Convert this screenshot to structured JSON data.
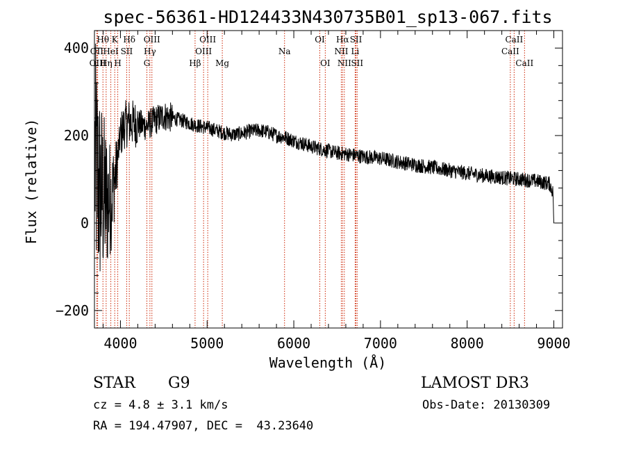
{
  "chart_data": {
    "type": "line",
    "title": "spec-56361-HD124433N430735B01_sp13-067.fits",
    "xlabel": "Wavelength (Å)",
    "ylabel": "Flux (relative)",
    "xlim": [
      3700,
      9100
    ],
    "ylim": [
      -240,
      440
    ],
    "xticks": [
      4000,
      5000,
      6000,
      7000,
      8000,
      9000
    ],
    "yticks": [
      -200,
      0,
      200,
      400
    ],
    "grid": false,
    "series": [
      {
        "name": "flux",
        "x": [
          3700,
          3750,
          3800,
          3850,
          3900,
          3950,
          4000,
          4050,
          4100,
          4150,
          4200,
          4300,
          4400,
          4500,
          4600,
          4700,
          4800,
          4900,
          5000,
          5100,
          5200,
          5300,
          5400,
          5500,
          5600,
          5700,
          5800,
          5900,
          6000,
          6100,
          6200,
          6300,
          6400,
          6500,
          6600,
          6700,
          6800,
          6900,
          7000,
          7200,
          7400,
          7600,
          7800,
          8000,
          8200,
          8400,
          8600,
          8800,
          8950,
          8990,
          9000
        ],
        "y": [
          150,
          80,
          60,
          50,
          60,
          120,
          200,
          225,
          230,
          228,
          226,
          222,
          235,
          245,
          240,
          235,
          228,
          222,
          218,
          212,
          206,
          202,
          205,
          210,
          212,
          208,
          200,
          196,
          188,
          182,
          175,
          170,
          165,
          160,
          158,
          155,
          152,
          150,
          148,
          140,
          133,
          127,
          120,
          114,
          108,
          104,
          100,
          96,
          90,
          70,
          0
        ]
      }
    ],
    "spectral_lines": [
      {
        "label": "Hθ",
        "wl": 3798,
        "row": 1
      },
      {
        "label": "OII",
        "wl": 3727,
        "row": 2
      },
      {
        "label": "OIII",
        "wl": 3737,
        "row": 3
      },
      {
        "label": "K",
        "wl": 3934,
        "row": 1
      },
      {
        "label": "HeI",
        "wl": 3889,
        "row": 2
      },
      {
        "label": "Hη",
        "wl": 3835,
        "row": 3
      },
      {
        "label": "Hδ",
        "wl": 4102,
        "row": 1
      },
      {
        "label": "SII",
        "wl": 4072,
        "row": 2
      },
      {
        "label": "H",
        "wl": 3969,
        "row": 3
      },
      {
        "label": "OIII",
        "wl": 4363,
        "row": 1
      },
      {
        "label": "Hγ",
        "wl": 4340,
        "row": 2
      },
      {
        "label": "G",
        "wl": 4305,
        "row": 3
      },
      {
        "label": "OIII",
        "wl": 5007,
        "row": 1
      },
      {
        "label": "OIII",
        "wl": 4959,
        "row": 2
      },
      {
        "label": "Hβ",
        "wl": 4861,
        "row": 3
      },
      {
        "label": "Mg",
        "wl": 5175,
        "row": 3
      },
      {
        "label": "Na",
        "wl": 5893,
        "row": 2
      },
      {
        "label": "OI",
        "wl": 6300,
        "row": 1
      },
      {
        "label": "OI",
        "wl": 6363,
        "row": 3
      },
      {
        "label": "Hα",
        "wl": 6563,
        "row": 1
      },
      {
        "label": "NII",
        "wl": 6548,
        "row": 2
      },
      {
        "label": "NII",
        "wl": 6583,
        "row": 3
      },
      {
        "label": "SII",
        "wl": 6717,
        "row": 1
      },
      {
        "label": "Li",
        "wl": 6708,
        "row": 2
      },
      {
        "label": "SII",
        "wl": 6731,
        "row": 3
      },
      {
        "label": "CaII",
        "wl": 8542,
        "row": 1
      },
      {
        "label": "CaII",
        "wl": 8498,
        "row": 2
      },
      {
        "label": "CaII",
        "wl": 8662,
        "row": 3
      }
    ]
  },
  "info": {
    "class": "STAR",
    "subclass": "G9",
    "survey": "LAMOST DR3",
    "cz": "cz = 4.8 ± 3.1 km/s",
    "obs_date": "Obs-Date: 20130309",
    "coords": "RA = 194.47907, DEC =  43.23640"
  },
  "colors": {
    "line_marker": "#cc2200",
    "spectrum": "#000000"
  }
}
